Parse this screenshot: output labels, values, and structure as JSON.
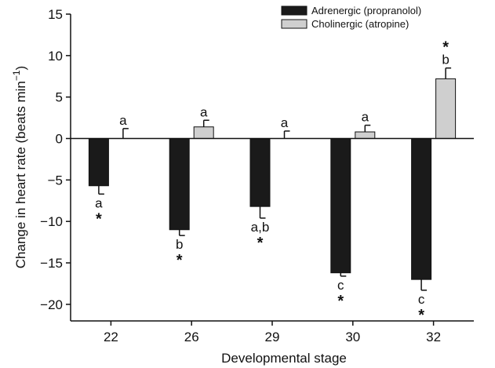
{
  "chart_data": {
    "type": "bar",
    "xlabel": "Developmental stage",
    "ylabel": "Change in heart rate (beats min",
    "ylabel_sup": "−1",
    "ylabel_tail": ")",
    "ylim": [
      -22,
      15
    ],
    "yticks": [
      15,
      10,
      5,
      0,
      -5,
      -10,
      -15,
      -20
    ],
    "ytick_labels": [
      "15",
      "10",
      "5",
      "0",
      "−5",
      "−10",
      "−15",
      "−20"
    ],
    "categories": [
      "22",
      "26",
      "29",
      "30",
      "32"
    ],
    "series": [
      {
        "name": "Adrenergic (propranolol)",
        "color": "#1a1a1a",
        "values": [
          -5.7,
          -11.0,
          -8.2,
          -16.2,
          -17.0
        ],
        "errors": [
          1.0,
          0.7,
          1.4,
          0.4,
          1.3
        ],
        "annotations": [
          {
            "letter": "a",
            "star": "*"
          },
          {
            "letter": "b",
            "star": "*"
          },
          {
            "letter": "a,b",
            "star": "*"
          },
          {
            "letter": "c",
            "star": "*"
          },
          {
            "letter": "c",
            "star": "*"
          }
        ]
      },
      {
        "name": "Cholinergic (atropine)",
        "color": "#cfcfcf",
        "values": [
          0.0,
          1.4,
          0.0,
          0.8,
          7.2
        ],
        "errors": [
          1.2,
          0.8,
          0.9,
          0.8,
          1.3
        ],
        "annotations": [
          {
            "letter": "a",
            "star": ""
          },
          {
            "letter": "a",
            "star": ""
          },
          {
            "letter": "a",
            "star": ""
          },
          {
            "letter": "a",
            "star": ""
          },
          {
            "letter": "b",
            "star": "*"
          }
        ]
      }
    ],
    "legend_position": "top-right",
    "grid": false
  }
}
